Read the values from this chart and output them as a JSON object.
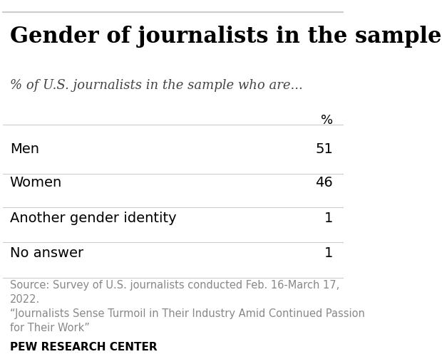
{
  "title": "Gender of journalists in the sample",
  "subtitle": "% of U.S. journalists in the sample who are...",
  "col_header": "%",
  "rows": [
    {
      "label": "Men",
      "value": "51"
    },
    {
      "label": "Women",
      "value": "46"
    },
    {
      "label": "Another gender identity",
      "value": "1"
    },
    {
      "label": "No answer",
      "value": "1"
    }
  ],
  "source_text": "Source: Survey of U.S. journalists conducted Feb. 16-March 17,\n2022.\n“Journalists Sense Turmoil in Their Industry Amid Continued Passion\nfor Their Work”",
  "footer": "PEW RESEARCH CENTER",
  "bg_color": "#ffffff",
  "title_color": "#000000",
  "subtitle_color": "#444444",
  "row_label_color": "#000000",
  "row_value_color": "#000000",
  "source_color": "#888888",
  "footer_color": "#000000",
  "divider_color": "#cccccc",
  "title_fontsize": 22,
  "subtitle_fontsize": 13,
  "header_fontsize": 13,
  "row_fontsize": 14,
  "source_fontsize": 10.5,
  "footer_fontsize": 11
}
